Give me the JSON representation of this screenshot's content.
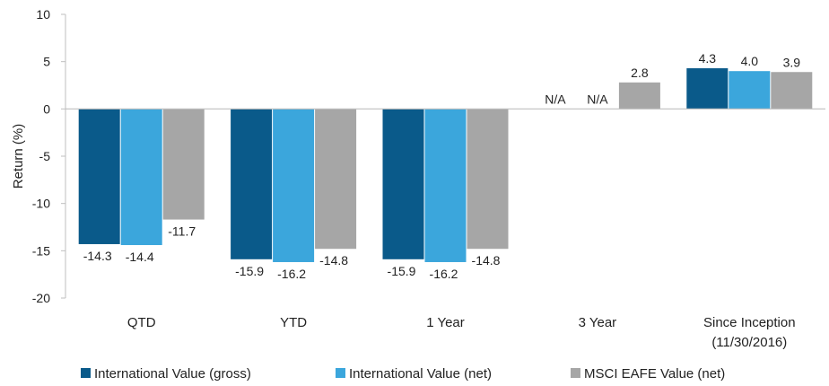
{
  "chart_data": {
    "type": "bar",
    "title": "",
    "xlabel": "",
    "ylabel": "Return (%)",
    "ylim": [
      -20,
      10
    ],
    "yticks": [
      10,
      5,
      0,
      -5,
      -10,
      -15,
      -20
    ],
    "grid": false,
    "legend_position": "bottom",
    "categories": [
      {
        "lines": [
          "QTD"
        ]
      },
      {
        "lines": [
          "YTD"
        ]
      },
      {
        "lines": [
          "1 Year"
        ]
      },
      {
        "lines": [
          "3 Year"
        ]
      },
      {
        "lines": [
          "Since Inception",
          "(11/30/2016)"
        ]
      }
    ],
    "series": [
      {
        "name": "International Value (gross)",
        "color": "#0a5a8a",
        "values": [
          -14.3,
          -15.9,
          -15.9,
          null,
          4.3
        ],
        "labels": [
          "-14.3",
          "-15.9",
          "-15.9",
          "N/A",
          "4.3"
        ]
      },
      {
        "name": "International Value (net)",
        "color": "#3ba6dc",
        "values": [
          -14.4,
          -16.2,
          -16.2,
          null,
          4.0
        ],
        "labels": [
          "-14.4",
          "-16.2",
          "-16.2",
          "N/A",
          "4.0"
        ]
      },
      {
        "name": "MSCI EAFE Value (net)",
        "color": "#a6a6a6",
        "values": [
          -11.7,
          -14.8,
          -14.8,
          2.8,
          3.9
        ],
        "labels": [
          "-11.7",
          "-14.8",
          "-14.8",
          "2.8",
          "3.9"
        ]
      }
    ]
  }
}
